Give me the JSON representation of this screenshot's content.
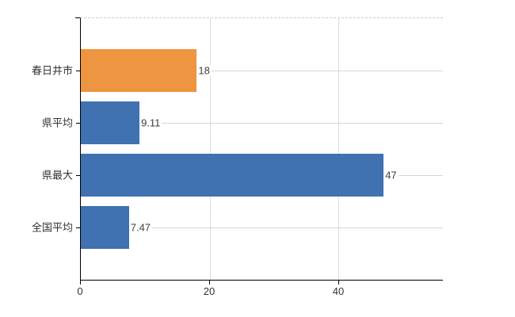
{
  "chart_data": {
    "type": "bar",
    "orientation": "horizontal",
    "categories": [
      "春日井市",
      "県平均",
      "県最大",
      "全国平均"
    ],
    "values": [
      18,
      9.11,
      47,
      7.47
    ],
    "value_labels": [
      "18",
      "9.11",
      "47",
      "7.47"
    ],
    "bar_colors": [
      "#ED9540",
      "#4071B1",
      "#4071B1",
      "#4071B1"
    ],
    "x_ticks": [
      0,
      20,
      40
    ],
    "xlim": [
      0,
      56.2
    ],
    "grid": true,
    "gridline_horizontal_color": "#D6DACF",
    "gridline_vertical_color": "#DCDCDC",
    "plot_top_border_color": "#CBCBCB",
    "axis_color": "#000000",
    "highlight_color": "#ED9540",
    "series_color": "#4071B1",
    "background": "#FFFFFF"
  }
}
